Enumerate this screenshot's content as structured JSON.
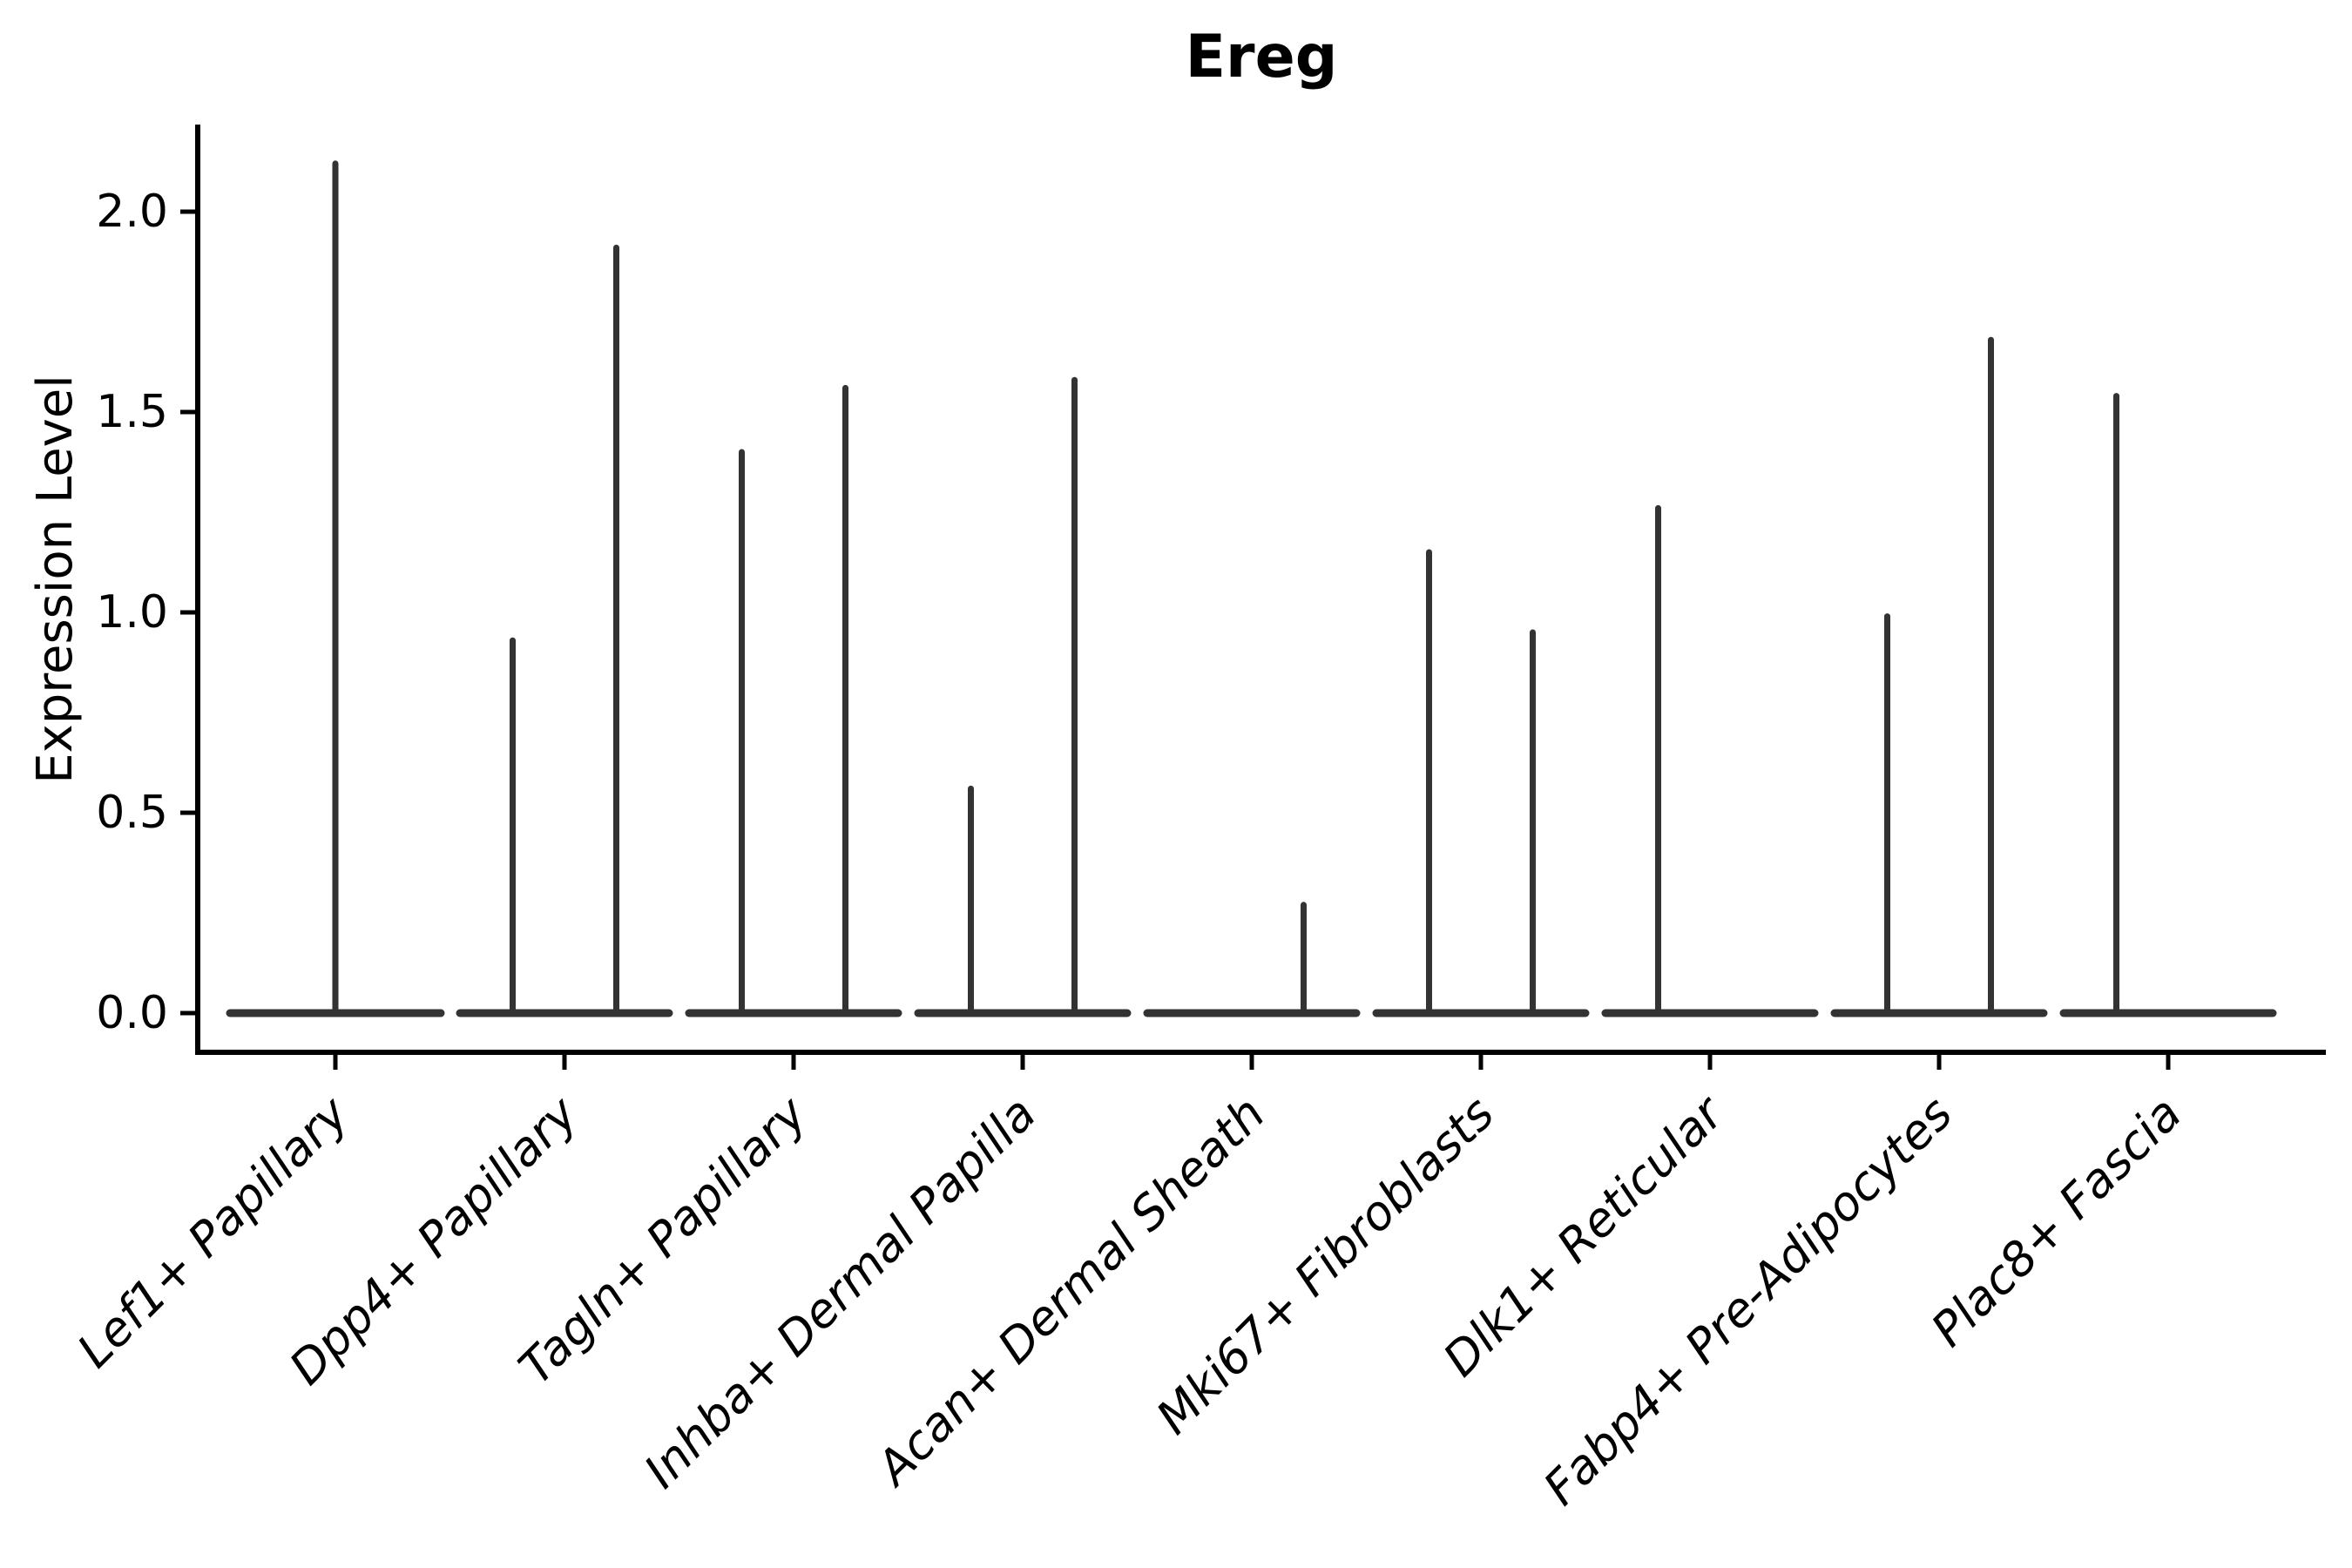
{
  "chart_data": {
    "type": "violin",
    "title": "Ereg",
    "xlabel": "",
    "ylabel": "Expression Level",
    "ylim": [
      -0.1,
      2.22
    ],
    "yticks": [
      0.0,
      0.5,
      1.0,
      1.5,
      2.0
    ],
    "ytick_labels": [
      "0.0",
      "0.5",
      "1.0",
      "1.5",
      "2.0"
    ],
    "grid": false,
    "legend": "none",
    "categories": [
      "Lef1+ Papillary",
      "Dpp4+ Papillary",
      "Tagln+ Papillary",
      "Inhba+ Dermal Papilla",
      "Acan+ Dermal Sheath",
      "Mki67+ Fibroblasts",
      "Dlk1+ Reticular",
      "Fabp4+ Pre-Adipocytes",
      "Plac8+ Fascia"
    ],
    "violins": [
      {
        "category": "Lef1+ Papillary",
        "parts": [
          {
            "position": "full",
            "max_expression": 2.12
          }
        ]
      },
      {
        "category": "Dpp4+ Papillary",
        "parts": [
          {
            "position": "left",
            "max_expression": 0.93
          },
          {
            "position": "right",
            "max_expression": 1.91
          }
        ]
      },
      {
        "category": "Tagln+ Papillary",
        "parts": [
          {
            "position": "left",
            "max_expression": 1.4
          },
          {
            "position": "right",
            "max_expression": 1.56
          }
        ]
      },
      {
        "category": "Inhba+ Dermal Papilla",
        "parts": [
          {
            "position": "left",
            "max_expression": 0.56
          },
          {
            "position": "right",
            "max_expression": 1.58
          }
        ]
      },
      {
        "category": "Acan+ Dermal Sheath",
        "parts": [
          {
            "position": "left",
            "max_expression": 0.0
          },
          {
            "position": "right",
            "max_expression": 0.27
          }
        ]
      },
      {
        "category": "Mki67+ Fibroblasts",
        "parts": [
          {
            "position": "left",
            "max_expression": 1.15
          },
          {
            "position": "right",
            "max_expression": 0.95
          }
        ]
      },
      {
        "category": "Dlk1+ Reticular",
        "parts": [
          {
            "position": "left",
            "max_expression": 1.26
          },
          {
            "position": "right",
            "max_expression": 0.0
          }
        ]
      },
      {
        "category": "Fabp4+ Pre-Adipocytes",
        "parts": [
          {
            "position": "left",
            "max_expression": 0.99
          },
          {
            "position": "right",
            "max_expression": 1.68
          }
        ]
      },
      {
        "category": "Plac8+ Fascia",
        "parts": [
          {
            "position": "left",
            "max_expression": 1.54
          },
          {
            "position": "right",
            "max_expression": 0.0
          }
        ]
      }
    ],
    "colors": {
      "violin_line": "#333333",
      "axis": "#000000",
      "text": "#000000",
      "background": "#ffffff"
    }
  }
}
